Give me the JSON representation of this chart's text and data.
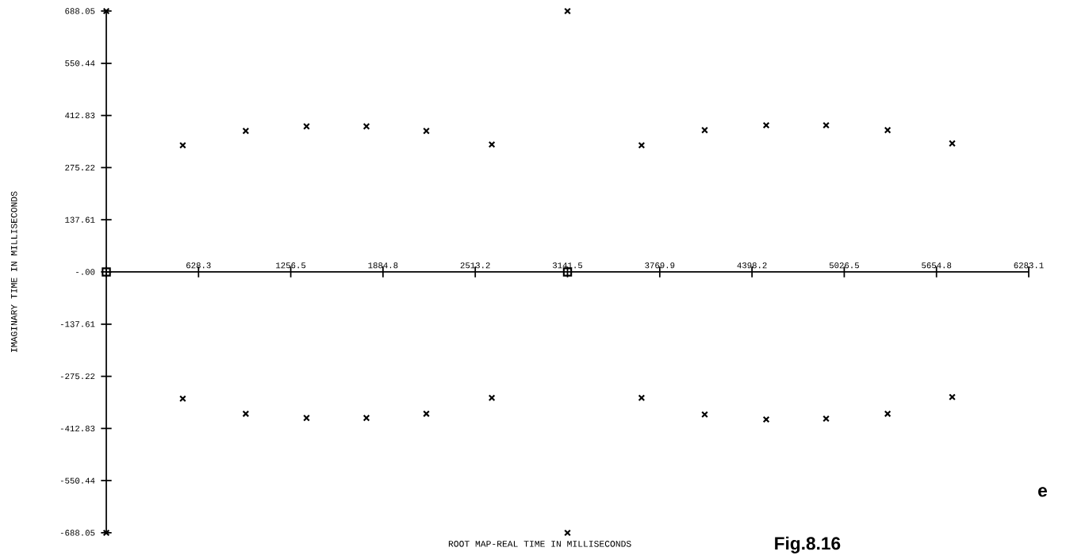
{
  "chart_data": {
    "type": "scatter",
    "xlabel": "ROOT MAP-REAL TIME IN MILLISECONDS",
    "ylabel": "IMAGINARY TIME IN MILLISECONDS",
    "annotations": [
      "e",
      "Fig.8.16"
    ],
    "xlim": [
      0,
      6283.1
    ],
    "ylim": [
      -688.05,
      688.05
    ],
    "xticks": [
      {
        "value": 0,
        "label": null
      },
      628.3,
      1256.5,
      1884.8,
      2513.2,
      3141.5,
      3769.9,
      4398.2,
      5026.5,
      5654.8,
      6283.1
    ],
    "yticks": [
      {
        "value": -688.05,
        "label": "-688.05"
      },
      {
        "value": -550.44,
        "label": "-550.44"
      },
      {
        "value": -412.83,
        "label": "-412.83"
      },
      {
        "value": -275.22,
        "label": "-275.22"
      },
      {
        "value": -137.61,
        "label": "-137.61"
      },
      {
        "value": 0,
        "label": "-.00"
      },
      137.61,
      275.22,
      {
        "value": 412.83,
        "label": "412.83"
      },
      {
        "value": 550.44,
        "label": "550.44"
      },
      688.05
    ],
    "series": [
      {
        "color": "#000000",
        "marker": "cross",
        "x": [
          0,
          521,
          950,
          1364,
          1772,
          2180,
          2626,
          3141.5,
          3646,
          4076,
          4495,
          4903,
          5322,
          5762,
          0,
          521,
          950,
          1364,
          1772,
          2180,
          2626,
          3141.5,
          3646,
          4076,
          4495,
          4903,
          5322,
          5762
        ],
        "values": [
          688,
          334,
          372,
          384,
          384,
          372,
          336,
          688,
          334,
          374,
          387,
          387,
          374,
          339,
          -688,
          -334,
          -374,
          -385,
          -385,
          -374,
          -332,
          -688,
          -332,
          -376,
          -389,
          -387,
          -374,
          -330
        ]
      },
      {
        "color": "#000000",
        "marker": "square",
        "x": [
          0,
          3141.5
        ],
        "values": [
          0,
          0
        ]
      }
    ]
  }
}
